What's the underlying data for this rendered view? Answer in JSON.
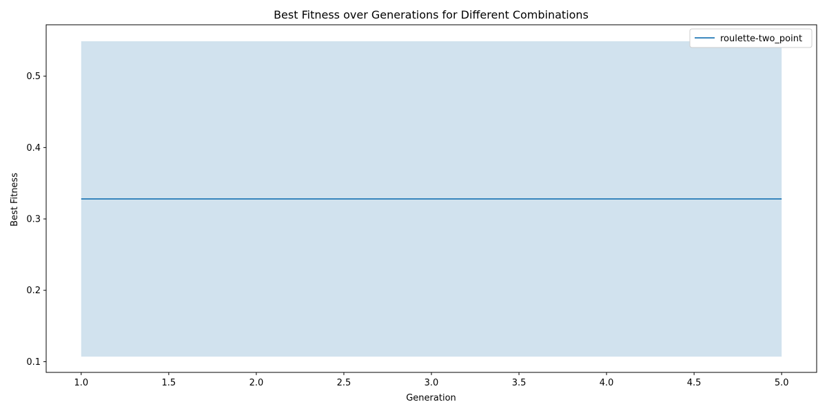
{
  "chart_data": {
    "type": "line",
    "title": "Best Fitness over Generations for Different Combinations",
    "xlabel": "Generation",
    "ylabel": "Best Fitness",
    "xlim": [
      0.8,
      5.2
    ],
    "ylim": [
      0.085,
      0.572
    ],
    "xticks": [
      "1.0",
      "1.5",
      "2.0",
      "2.5",
      "3.0",
      "3.5",
      "4.0",
      "4.5",
      "5.0"
    ],
    "yticks": [
      "0.1",
      "0.2",
      "0.3",
      "0.4",
      "0.5"
    ],
    "grid": false,
    "legend_position": "top-right",
    "series": [
      {
        "name": "roulette-two_point",
        "color": "#1f77b4",
        "band_color": "#d1e2ee",
        "x": [
          1,
          2,
          3,
          4,
          5
        ],
        "y": [
          0.328,
          0.328,
          0.328,
          0.328,
          0.328
        ],
        "lower": [
          0.107,
          0.107,
          0.107,
          0.107,
          0.107
        ],
        "upper": [
          0.549,
          0.549,
          0.549,
          0.549,
          0.549
        ]
      }
    ]
  }
}
